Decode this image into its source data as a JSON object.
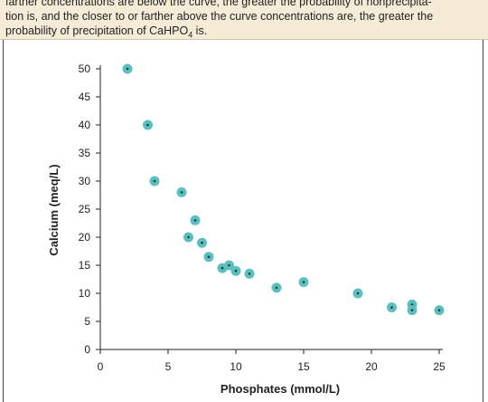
{
  "caption": {
    "line0": "farther concentrations are below the curve, the greater the probability of nonprecipita-",
    "line1": "tion is, and the closer to or farther above the curve concentrations are, the greater the",
    "line2_pre": "probability of precipitation of CaHPO",
    "line2_sub": "4",
    "line2_post": " is."
  },
  "colors": {
    "point": "#5bbfc0",
    "point_center": "#1f3b3b",
    "axis": "#222222"
  },
  "chart_data": {
    "type": "scatter",
    "title": "",
    "xlabel": "Phosphates (mmol/L)",
    "ylabel": "Calcium (meq/L)",
    "xlim": [
      0,
      25
    ],
    "ylim": [
      0,
      50
    ],
    "xticks": [
      "0",
      "5",
      "10",
      "15",
      "20",
      "25"
    ],
    "yticks": [
      "0",
      "5",
      "10",
      "15",
      "20",
      "25",
      "30",
      "35",
      "40",
      "45",
      "50"
    ],
    "grid": false,
    "x": [
      2,
      3.5,
      4,
      6,
      7,
      6.5,
      7.5,
      8,
      9,
      9.5,
      10,
      11,
      13,
      15,
      19,
      21.5,
      23,
      23,
      25
    ],
    "y": [
      50,
      40,
      30,
      28,
      23,
      20,
      19,
      16.5,
      14.5,
      15,
      14,
      13.5,
      11,
      12,
      10,
      7.5,
      8,
      7,
      7
    ]
  }
}
